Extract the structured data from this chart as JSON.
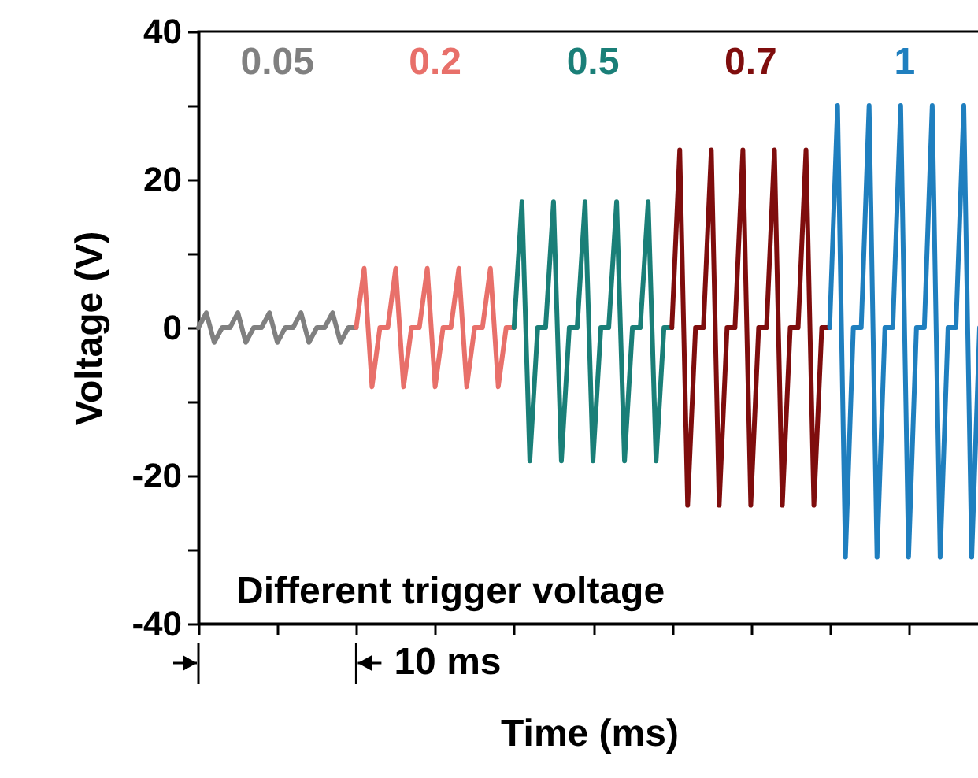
{
  "chart_data": {
    "type": "line",
    "xlabel": "Time (ms)",
    "ylabel": "Voltage (V)",
    "annotations": [
      "Different trigger voltage",
      "10 ms"
    ],
    "categories": [
      null,
      null,
      null,
      null,
      null,
      null,
      null,
      null,
      null,
      null,
      null,
      null,
      null,
      null,
      null,
      null,
      null,
      null,
      null,
      null,
      null,
      null,
      null,
      null,
      null,
      null,
      null,
      null,
      null,
      null,
      null,
      null,
      null,
      null,
      null,
      null,
      null,
      null,
      null,
      null,
      null,
      null,
      null,
      null,
      null,
      null,
      null,
      null,
      null,
      null,
      null,
      null,
      null,
      null,
      null,
      null,
      null,
      null,
      null,
      null,
      null,
      null,
      null,
      null,
      null,
      null,
      null,
      null,
      null,
      null,
      null,
      null,
      null,
      null,
      null,
      null,
      null,
      null,
      null,
      null,
      null,
      null,
      null,
      null,
      null,
      null,
      null,
      null,
      null,
      null,
      null,
      null,
      null,
      null,
      null,
      null,
      null,
      null,
      null,
      null
    ],
    "ylim": [
      -40,
      40
    ],
    "yticks": [
      -40,
      {
        "value": -30,
        "label": null
      },
      -20,
      {
        "value": -10,
        "label": null
      },
      0,
      {
        "value": 10,
        "label": null
      },
      20,
      {
        "value": 30,
        "label": null
      },
      40
    ],
    "tick_labels": "y",
    "legend": "top",
    "marker": "none",
    "line_style": "solid",
    "series": [
      {
        "name": "0.05",
        "color": "#808080",
        "values": [
          0,
          2,
          -2,
          0,
          0,
          2,
          -2,
          0,
          0,
          2,
          -2,
          0,
          0,
          2,
          -2,
          0,
          0,
          2,
          -2,
          0,
          0,
          null,
          null,
          null,
          null,
          null,
          null,
          null,
          null,
          null,
          null,
          null,
          null,
          null,
          null,
          null,
          null,
          null,
          null,
          null,
          null,
          null,
          null,
          null,
          null,
          null,
          null,
          null,
          null,
          null,
          null,
          null,
          null,
          null,
          null,
          null,
          null,
          null,
          null,
          null,
          null,
          null,
          null,
          null,
          null,
          null,
          null,
          null,
          null,
          null,
          null,
          null,
          null,
          null,
          null,
          null,
          null,
          null,
          null,
          null,
          null,
          null,
          null,
          null,
          null,
          null,
          null,
          null,
          null,
          null,
          null,
          null,
          null,
          null,
          null,
          null,
          null,
          null,
          null,
          null
        ]
      },
      {
        "name": "0.2",
        "color": "#e8706a",
        "values": [
          null,
          null,
          null,
          null,
          null,
          null,
          null,
          null,
          null,
          null,
          null,
          null,
          null,
          null,
          null,
          null,
          null,
          null,
          null,
          null,
          0,
          8,
          -8,
          0,
          0,
          8,
          -8,
          0,
          0,
          8,
          -8,
          0,
          0,
          8,
          -8,
          0,
          0,
          8,
          -8,
          0,
          0,
          null,
          null,
          null,
          null,
          null,
          null,
          null,
          null,
          null,
          null,
          null,
          null,
          null,
          null,
          null,
          null,
          null,
          null,
          null,
          null,
          null,
          null,
          null,
          null,
          null,
          null,
          null,
          null,
          null,
          null,
          null,
          null,
          null,
          null,
          null,
          null,
          null,
          null,
          null,
          null,
          null,
          null,
          null,
          null,
          null,
          null,
          null,
          null,
          null,
          null,
          null,
          null,
          null,
          null,
          null,
          null,
          null,
          null,
          null
        ]
      },
      {
        "name": "0.5",
        "color": "#1a7f78",
        "values": [
          null,
          null,
          null,
          null,
          null,
          null,
          null,
          null,
          null,
          null,
          null,
          null,
          null,
          null,
          null,
          null,
          null,
          null,
          null,
          null,
          null,
          null,
          null,
          null,
          null,
          null,
          null,
          null,
          null,
          null,
          null,
          null,
          null,
          null,
          null,
          null,
          null,
          null,
          null,
          null,
          0,
          17,
          -18,
          0,
          0,
          17,
          -18,
          0,
          0,
          17,
          -18,
          0,
          0,
          17,
          -18,
          0,
          0,
          17,
          -18,
          0,
          0,
          null,
          null,
          null,
          null,
          null,
          null,
          null,
          null,
          null,
          null,
          null,
          null,
          null,
          null,
          null,
          null,
          null,
          null,
          null,
          null,
          null,
          null,
          null,
          null,
          null,
          null,
          null,
          null,
          null,
          null,
          null,
          null,
          null,
          null,
          null,
          null,
          null,
          null,
          null
        ]
      },
      {
        "name": "0.7",
        "color": "#7f0d0d",
        "values": [
          null,
          null,
          null,
          null,
          null,
          null,
          null,
          null,
          null,
          null,
          null,
          null,
          null,
          null,
          null,
          null,
          null,
          null,
          null,
          null,
          null,
          null,
          null,
          null,
          null,
          null,
          null,
          null,
          null,
          null,
          null,
          null,
          null,
          null,
          null,
          null,
          null,
          null,
          null,
          null,
          null,
          null,
          null,
          null,
          null,
          null,
          null,
          null,
          null,
          null,
          null,
          null,
          null,
          null,
          null,
          null,
          null,
          null,
          null,
          null,
          0,
          24,
          -24,
          0,
          0,
          24,
          -24,
          0,
          0,
          24,
          -24,
          0,
          0,
          24,
          -24,
          0,
          0,
          24,
          -24,
          0,
          0,
          null,
          null,
          null,
          null,
          null,
          null,
          null,
          null,
          null,
          null,
          null,
          null,
          null,
          null,
          null,
          null,
          null,
          null,
          null
        ]
      },
      {
        "name": "1",
        "color": "#1f7fbf",
        "values": [
          null,
          null,
          null,
          null,
          null,
          null,
          null,
          null,
          null,
          null,
          null,
          null,
          null,
          null,
          null,
          null,
          null,
          null,
          null,
          null,
          null,
          null,
          null,
          null,
          null,
          null,
          null,
          null,
          null,
          null,
          null,
          null,
          null,
          null,
          null,
          null,
          null,
          null,
          null,
          null,
          null,
          null,
          null,
          null,
          null,
          null,
          null,
          null,
          null,
          null,
          null,
          null,
          null,
          null,
          null,
          null,
          null,
          null,
          null,
          null,
          null,
          null,
          null,
          null,
          null,
          null,
          null,
          null,
          null,
          null,
          null,
          null,
          null,
          null,
          null,
          null,
          null,
          null,
          null,
          null,
          0,
          30,
          -31,
          0,
          0,
          30,
          -31,
          0,
          0,
          30,
          -31,
          0,
          0,
          30,
          -31,
          0,
          0,
          30,
          -31,
          0
        ]
      }
    ]
  }
}
